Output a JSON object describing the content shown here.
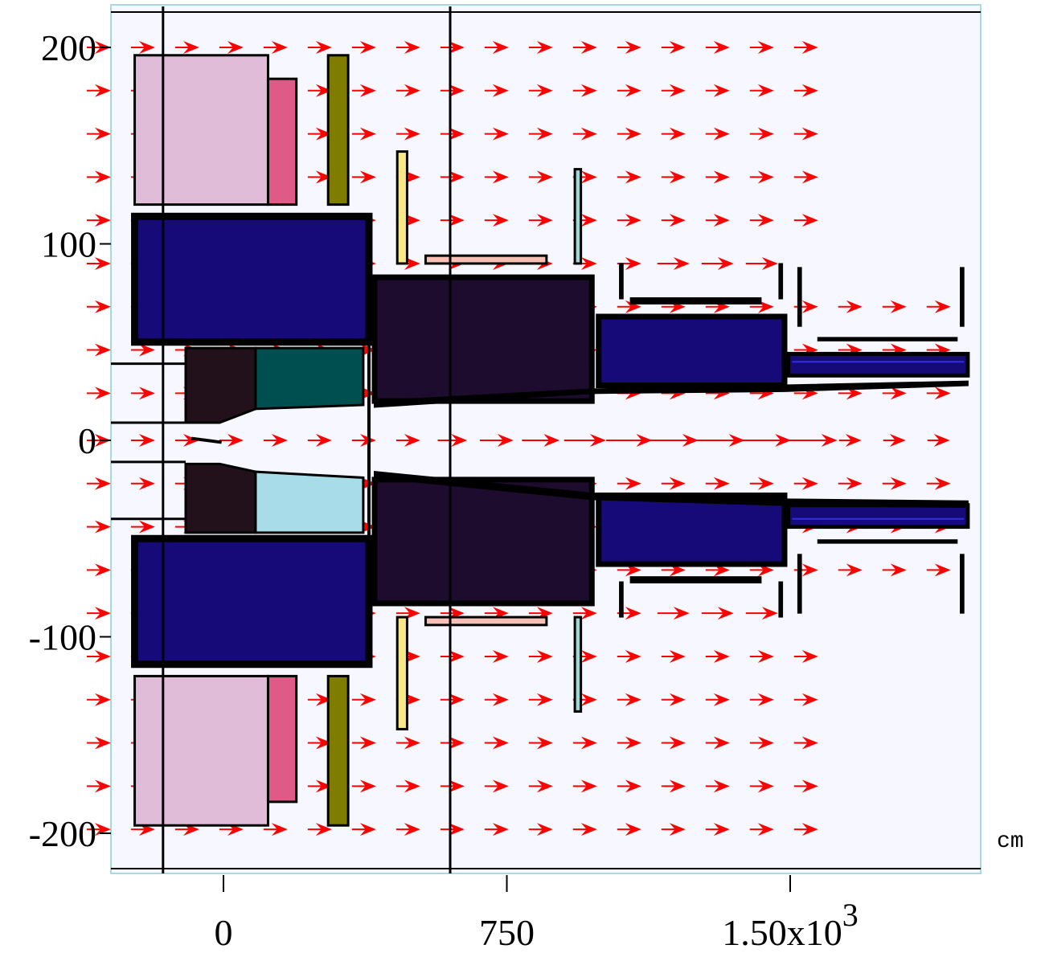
{
  "chart_data": {
    "type": "diagram",
    "x_ticks": [
      {
        "value": 0,
        "label": "0"
      },
      {
        "value": 750,
        "label": "750"
      },
      {
        "value": 1500,
        "label": "1.50x10",
        "sup": "3"
      }
    ],
    "y_ticks": [
      {
        "value": 200,
        "label": "200"
      },
      {
        "value": 100,
        "label": "100"
      },
      {
        "value": 0,
        "label": "0"
      },
      {
        "value": -100,
        "label": "-100"
      },
      {
        "value": -200,
        "label": "-200"
      }
    ],
    "unit_label": "cm",
    "xlim": [
      -300,
      2000
    ],
    "ylim": [
      -220,
      220
    ],
    "vertical_lines_x": [
      -160,
      600
    ],
    "horizontal_lines_y": [
      218,
      -218
    ],
    "colors": {
      "background": "#f7f8ff",
      "frame": "#aad8e0",
      "arrow": "#ff0000",
      "outline": "#000000",
      "pink_coil": "#e0bcd8",
      "magenta_coil": "#e05a88",
      "olive_coil": "#7f7c00",
      "navy_magnet": "#160a78",
      "dark_magnet": "#1e0c2e",
      "teal_absorber": "#004f50",
      "light_blue_absorber": "#a8dce8",
      "dark_brown": "#22101a",
      "yellow_plate": "#f8e888",
      "salmon_plate": "#f8c0b4",
      "cyan_plate": "#a0d8d8"
    }
  }
}
